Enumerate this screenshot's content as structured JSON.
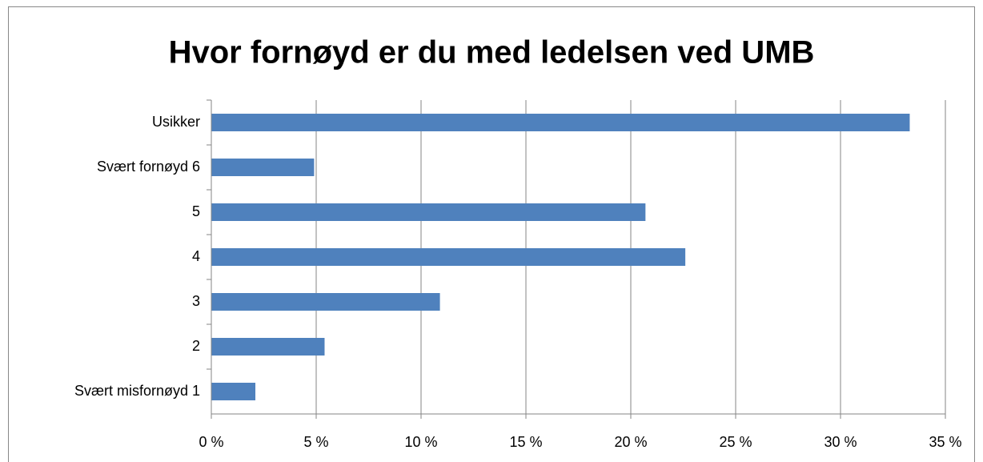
{
  "chart_data": {
    "type": "bar",
    "orientation": "horizontal",
    "title": "Hvor fornøyd er du med ledelsen ved UMB",
    "categories": [
      "Usikker",
      "Svært fornøyd 6",
      "5",
      "4",
      "3",
      "2",
      "Svært misfornøyd 1"
    ],
    "values": [
      33.3,
      4.9,
      20.7,
      22.6,
      10.9,
      5.4,
      2.1
    ],
    "color": "#4f81bd",
    "xlim": [
      0,
      35
    ],
    "xticks": [
      {
        "value": 0,
        "label": "0 %"
      },
      {
        "value": 5,
        "label": "5 %"
      },
      {
        "value": 10,
        "label": "10 %"
      },
      {
        "value": 15,
        "label": "15 %"
      },
      {
        "value": 20,
        "label": "20 %"
      },
      {
        "value": 25,
        "label": "25 %"
      },
      {
        "value": 30,
        "label": "30 %"
      },
      {
        "value": 35,
        "label": "35 %"
      }
    ],
    "grid": true
  }
}
